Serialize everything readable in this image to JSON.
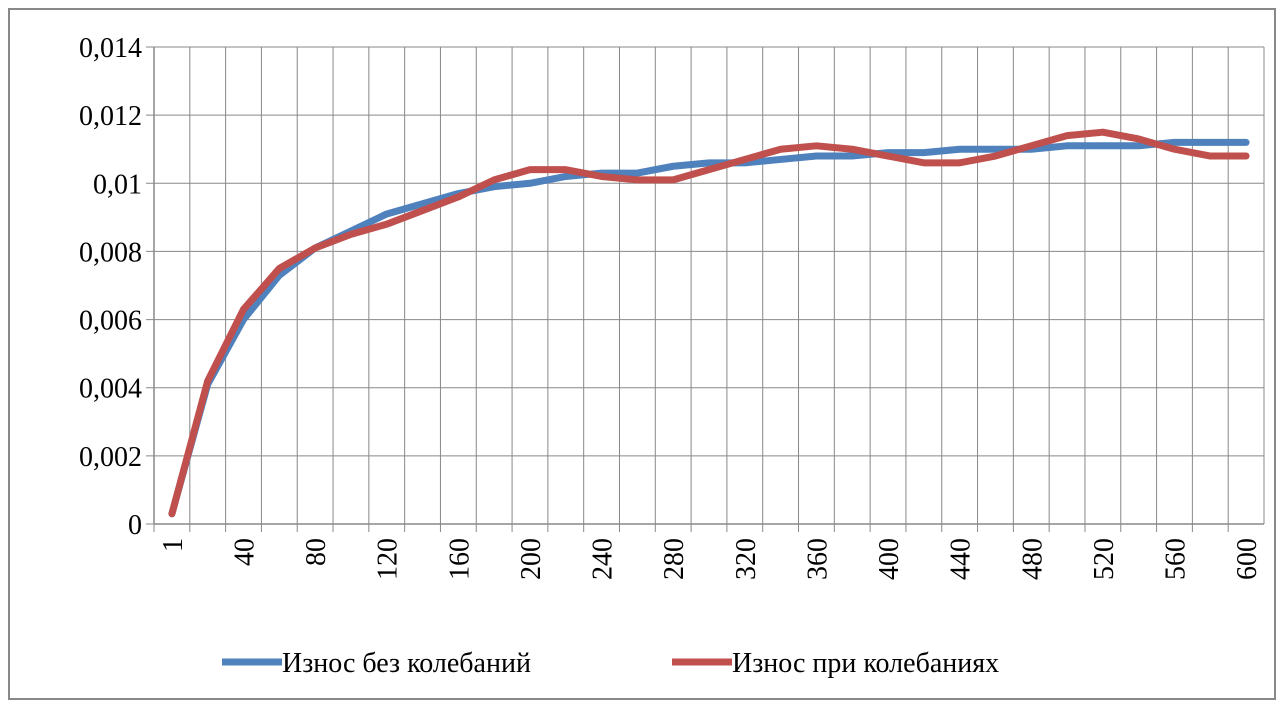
{
  "chart_data": {
    "type": "line",
    "categories": [
      "1",
      null,
      "40",
      null,
      "80",
      null,
      "120",
      null,
      "160",
      null,
      "200",
      null,
      "240",
      null,
      "280",
      null,
      "320",
      null,
      "360",
      null,
      "400",
      null,
      "440",
      null,
      "480",
      null,
      "520",
      null,
      "560",
      null,
      "600"
    ],
    "series": [
      {
        "name": "Износ без колебаний",
        "color": "#4f81bd",
        "values": [
          0.0003,
          0.0041,
          0.006,
          0.0073,
          0.0081,
          0.0086,
          0.0091,
          0.0094,
          0.0097,
          0.0099,
          0.01,
          0.0102,
          0.0103,
          0.0103,
          0.0105,
          0.0106,
          0.0106,
          0.0107,
          0.0108,
          0.0108,
          0.0109,
          0.0109,
          0.011,
          0.011,
          0.011,
          0.0111,
          0.0111,
          0.0111,
          0.0112,
          0.0112,
          0.0112
        ]
      },
      {
        "name": "Износ при колебаниях",
        "color": "#c0504d",
        "values": [
          0.0003,
          0.0042,
          0.0063,
          0.0075,
          0.0081,
          0.0085,
          0.0088,
          0.0092,
          0.0096,
          0.0101,
          0.0104,
          0.0104,
          0.0102,
          0.0101,
          0.0101,
          0.0104,
          0.0107,
          0.011,
          0.0111,
          0.011,
          0.0108,
          0.0106,
          0.0106,
          0.0108,
          0.0111,
          0.0114,
          0.0115,
          0.0113,
          0.011,
          0.0108,
          0.0108
        ]
      }
    ],
    "ylim": [
      0,
      0.014
    ],
    "yticks": [
      0,
      {
        "value": 0.002,
        "label": "0,002"
      },
      {
        "value": 0.004,
        "label": "0,004"
      },
      {
        "value": 0.006,
        "label": "0,006"
      },
      {
        "value": 0.008,
        "label": "0,008"
      },
      {
        "value": 0.01,
        "label": "0,01"
      },
      {
        "value": 0.012,
        "label": "0,012"
      },
      {
        "value": 0.014,
        "label": "0,014"
      }
    ],
    "grid": true,
    "legend": "bottom"
  }
}
